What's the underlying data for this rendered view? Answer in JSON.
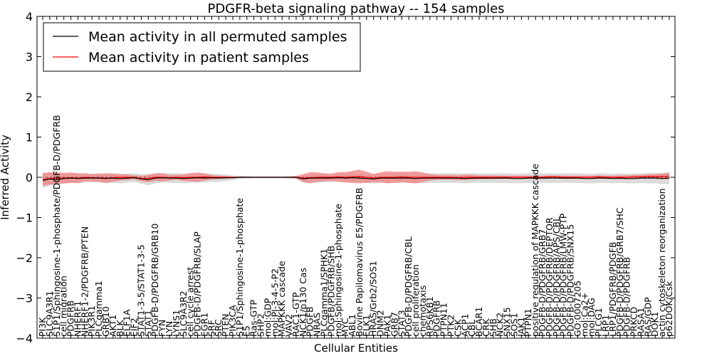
{
  "chart_data": {
    "type": "line",
    "title": "PDGFR-beta signaling pathway -- 154 samples",
    "xlabel": "Cellular Entities",
    "ylabel": "Inferred Activity",
    "ylim": [
      -4,
      4
    ],
    "yticks": [
      4,
      3,
      2,
      1,
      0,
      -1,
      -2,
      -3,
      -4
    ],
    "ytick_labels": [
      "4",
      "3",
      "2",
      "1",
      "0",
      "−1",
      "−2",
      "−3",
      "−4"
    ],
    "grid": false,
    "legend_position": "upper-left",
    "legend": [
      {
        "name": "Mean activity in all permuted samples",
        "color": "#000000"
      },
      {
        "name": "Mean activity in patient samples",
        "color": "#ff0000"
      }
    ],
    "categories": [
      "PI3K",
      "SLC9A3R1",
      "S1P1/Sphingosine-1-phosphate/PDGFB-D/PDGFRB",
      "cell migration",
      "PDGFRB",
      "NHERF1",
      "NHERF1-2/PDGFRB/PTEN",
      "PIK3R1",
      "PLCgamma1",
      "GRB10",
      "AKT1",
      "BLK",
      "ELF1A",
      "EIF2",
      "STAT1-3-5/STAT1-3-5",
      "STAT1",
      "PDGFB-D/PDGFRB/GRB10",
      "FYN",
      "LYN",
      "LYNS1",
      "SLC9A3R2",
      "cell cycle arrest",
      "PDGFB-D/PDGFRB/SLAP",
      "EGR1",
      "SRF",
      "SRC",
      "PTEN",
      "PIK3CA",
      "S1P1/Sphingosine-1-phosphate",
      "E5",
      "Ras-GTP",
      "SHP2",
      "mol:GDP",
      "mol:PI-3-4-5-P2",
      "MAPKKK cascade",
      "VAV2",
      "RAC1-GTP",
      "NCK1/p130 Cas",
      "PDGFB",
      "NRAS",
      "PLCgamma1/SPHK1",
      "PDGFB/PDGFRB/SHB",
      "mol:Sphingosine-1-phosphate",
      "MYC",
      "ABL1",
      "Bovine Papilomavirus E5/PDGFRB",
      "ELK1",
      "HRAS/Grb2/SOS1",
      "DNM2",
      "PAK1",
      "GRB7",
      "STAT3",
      "PDGFB-D/PDGFRB/CBL",
      "cell proliferation",
      "chemotaxis",
      "RPS6KB1",
      "PDGFRB",
      "PTPN11",
      "PTK2",
      "CSK",
      "ACP1",
      "CBL",
      "BCAR1",
      "CRK",
      "SHB",
      "NCK2",
      "SNX15",
      "SOS1",
      "JAK1",
      "PTPN1",
      "positive regulation of MAPKKK cascade",
      "PDGFB-D/PDGFRB/GRB7",
      "PDGFB-D/PDGFRB/DEPTOR",
      "PDGFB-D/PDGFRB/APS/CBL",
      "PDGFB-D/PDGFRB/LMW-PTP",
      "PDGFB-D/PDGFRB/SNX15",
      "GO:0007205",
      "mol:Ca2+",
      "mol:DAG",
      "PLCG1",
      "LRP1",
      "LRP1/PDGFRB/PDGFB",
      "PDGFB-D/PDGFRB/GRB7/SHC",
      "PDGFB-D/PDGFRB",
      "PRKCD",
      "RASA1",
      "RAS/GDP",
      "DOK1",
      "actin cytoskeleton reorganization",
      "p62DOK/Csk"
    ],
    "series": [
      {
        "name": "Mean activity in all permuted samples",
        "color": "#000000",
        "values": [
          -0.08,
          -0.04,
          -0.06,
          -0.03,
          -0.02,
          -0.03,
          -0.02,
          -0.02,
          -0.02,
          -0.03,
          -0.02,
          -0.03,
          -0.02,
          -0.01,
          -0.04,
          -0.06,
          -0.02,
          -0.01,
          -0.02,
          -0.02,
          -0.03,
          -0.02,
          -0.01,
          -0.02,
          -0.01,
          -0.02,
          -0.01,
          -0.01,
          0.0,
          0.0,
          0.0,
          0.0,
          0.0,
          0.0,
          0.0,
          0.0,
          0.0,
          -0.04,
          -0.02,
          -0.02,
          -0.02,
          -0.02,
          -0.01,
          -0.02,
          -0.01,
          -0.02,
          -0.03,
          -0.04,
          -0.02,
          -0.02,
          -0.02,
          -0.02,
          -0.02,
          -0.03,
          -0.02,
          -0.02,
          -0.02,
          -0.02,
          -0.02,
          -0.02,
          -0.03,
          -0.02,
          -0.02,
          -0.02,
          -0.02,
          -0.02,
          -0.02,
          -0.03,
          -0.03,
          -0.02,
          -0.02,
          -0.02,
          -0.02,
          -0.02,
          -0.02,
          -0.02,
          -0.02,
          -0.03,
          -0.03,
          -0.02,
          -0.02,
          -0.03,
          -0.02,
          -0.03,
          -0.03,
          -0.02,
          -0.02,
          -0.02,
          -0.03,
          -0.02
        ]
      },
      {
        "name": "Mean activity in patient samples",
        "color": "#ff0000",
        "values": [
          -0.05,
          -0.03,
          -0.02,
          -0.02,
          -0.01,
          -0.02,
          0.0,
          -0.01,
          -0.01,
          -0.02,
          -0.01,
          0.0,
          0.0,
          0.0,
          -0.03,
          -0.03,
          0.0,
          0.0,
          -0.01,
          0.0,
          -0.01,
          0.0,
          0.0,
          0.01,
          0.0,
          0.0,
          0.0,
          0.0,
          0.0,
          0.0,
          0.0,
          0.0,
          0.0,
          0.0,
          0.0,
          0.0,
          0.0,
          -0.02,
          -0.01,
          0.0,
          0.0,
          0.0,
          0.01,
          0.0,
          0.01,
          0.02,
          0.0,
          -0.02,
          0.0,
          0.0,
          0.0,
          0.01,
          0.0,
          0.0,
          0.0,
          0.0,
          0.0,
          0.0,
          0.0,
          -0.01,
          0.0,
          0.0,
          0.0,
          0.0,
          0.0,
          0.0,
          0.0,
          0.0,
          0.0,
          0.0,
          0.0,
          0.0,
          0.01,
          0.01,
          0.0,
          0.0,
          0.0,
          0.0,
          0.0,
          0.01,
          0.0,
          0.0,
          0.0,
          0.0,
          0.01,
          0.01,
          0.02,
          0.02,
          0.02,
          0.03
        ]
      }
    ],
    "bands": [
      {
        "name": "permuted samples spread",
        "color": "#cccccc",
        "values": [
          0.18,
          0.17,
          0.14,
          0.13,
          0.12,
          0.12,
          0.11,
          0.11,
          0.11,
          0.12,
          0.12,
          0.12,
          0.11,
          0.11,
          0.12,
          0.14,
          0.13,
          0.12,
          0.12,
          0.12,
          0.12,
          0.12,
          0.11,
          0.11,
          0.1,
          0.1,
          0.08,
          0.06,
          0.04,
          0.03,
          0.02,
          0.02,
          0.02,
          0.02,
          0.02,
          0.03,
          0.04,
          0.09,
          0.09,
          0.1,
          0.1,
          0.1,
          0.1,
          0.11,
          0.1,
          0.1,
          0.11,
          0.12,
          0.12,
          0.12,
          0.12,
          0.12,
          0.12,
          0.12,
          0.12,
          0.12,
          0.12,
          0.12,
          0.12,
          0.12,
          0.12,
          0.12,
          0.12,
          0.12,
          0.12,
          0.12,
          0.12,
          0.12,
          0.12,
          0.12,
          0.12,
          0.12,
          0.12,
          0.12,
          0.12,
          0.12,
          0.12,
          0.12,
          0.12,
          0.12,
          0.12,
          0.12,
          0.12,
          0.12,
          0.12,
          0.12,
          0.13,
          0.13,
          0.14,
          0.15
        ]
      },
      {
        "name": "patient samples spread",
        "color": "#f28080",
        "values": [
          0.16,
          0.15,
          0.14,
          0.13,
          0.13,
          0.12,
          0.1,
          0.09,
          0.1,
          0.12,
          0.1,
          0.08,
          0.07,
          0.05,
          0.07,
          0.09,
          0.09,
          0.1,
          0.07,
          0.06,
          0.08,
          0.1,
          0.12,
          0.09,
          0.06,
          0.04,
          0.03,
          0.02,
          0.01,
          0.01,
          0.01,
          0.01,
          0.01,
          0.01,
          0.01,
          0.01,
          0.03,
          0.1,
          0.14,
          0.12,
          0.1,
          0.09,
          0.12,
          0.13,
          0.15,
          0.17,
          0.14,
          0.1,
          0.13,
          0.15,
          0.14,
          0.13,
          0.14,
          0.15,
          0.12,
          0.08,
          0.06,
          0.06,
          0.06,
          0.06,
          0.07,
          0.06,
          0.05,
          0.05,
          0.05,
          0.04,
          0.04,
          0.04,
          0.04,
          0.04,
          0.04,
          0.04,
          0.04,
          0.04,
          0.04,
          0.04,
          0.04,
          0.04,
          0.04,
          0.04,
          0.04,
          0.04,
          0.05,
          0.05,
          0.05,
          0.05,
          0.05,
          0.06,
          0.07,
          0.08
        ]
      }
    ]
  }
}
